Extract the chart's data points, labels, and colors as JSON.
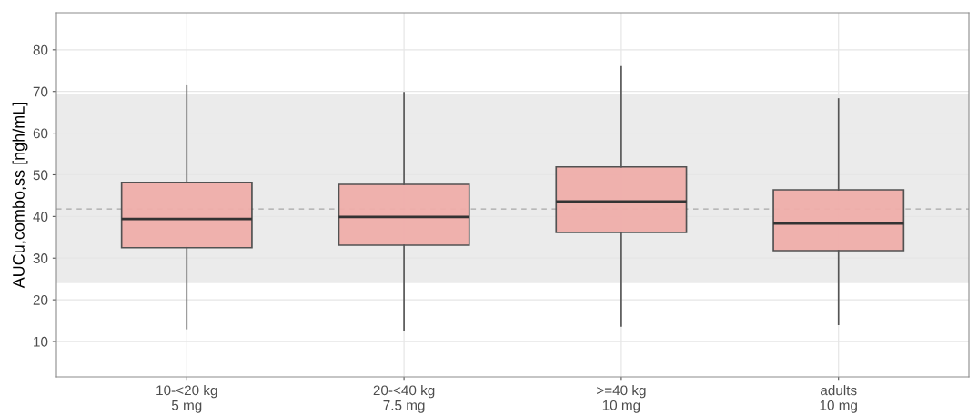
{
  "chart_data": {
    "type": "box",
    "ylabel": "AUCu,combo,ss [ngh/mL]",
    "categories": [
      "10-<20 kg\n5 mg",
      "20-<40 kg\n7.5 mg",
      ">=40 kg\n10 mg",
      "adults\n10 mg"
    ],
    "boxes": [
      {
        "low": 13.1,
        "q1": 32.5,
        "median": 39.4,
        "q3": 48.2,
        "high": 71.3
      },
      {
        "low": 12.6,
        "q1": 33.1,
        "median": 39.9,
        "q3": 47.7,
        "high": 69.7
      },
      {
        "low": 13.7,
        "q1": 36.2,
        "median": 43.6,
        "q3": 51.9,
        "high": 75.9
      },
      {
        "low": 14.1,
        "q1": 31.8,
        "median": 38.3,
        "q3": 46.4,
        "high": 68.2
      }
    ],
    "color": "#f0aeaa",
    "ylim": [
      1.5,
      88.9
    ],
    "yticks": [
      10,
      20,
      30,
      40,
      50,
      60,
      70,
      80
    ],
    "ref_lines": [
      {
        "axis": "y",
        "value": 41.8,
        "label": null,
        "color": "#a8a8a8",
        "line_style": "dashed"
      }
    ],
    "bands": [
      {
        "axis": "y",
        "from": 24.0,
        "to": 69.3,
        "label": null,
        "color": "#ebebeb"
      }
    ],
    "grid": true
  }
}
